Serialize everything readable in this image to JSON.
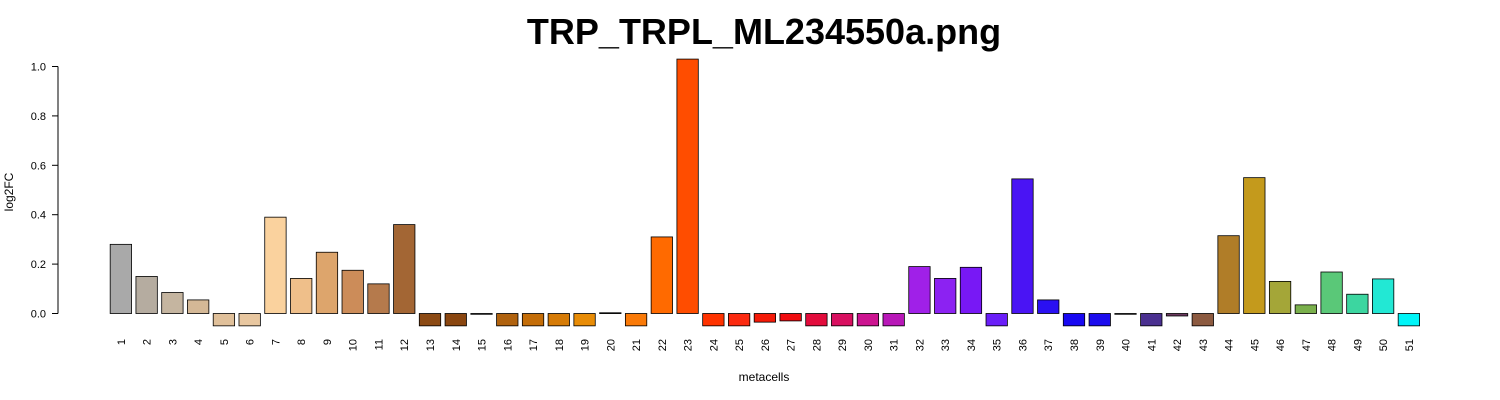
{
  "chart_data": {
    "type": "bar",
    "title": "TRP_TRPL_ML234550a.png",
    "xlabel": "metacells",
    "ylabel": "log2FC",
    "ylim": [
      -0.05,
      1.03
    ],
    "yticks": [
      "0.0",
      "0.2",
      "0.4",
      "0.6",
      "0.8",
      "1.0"
    ],
    "grid": false,
    "legend": "none",
    "categories": [
      "1",
      "2",
      "3",
      "4",
      "5",
      "6",
      "7",
      "8",
      "9",
      "10",
      "11",
      "12",
      "13",
      "14",
      "15",
      "16",
      "17",
      "18",
      "19",
      "20",
      "21",
      "22",
      "23",
      "24",
      "25",
      "26",
      "27",
      "28",
      "29",
      "30",
      "31",
      "32",
      "33",
      "34",
      "35",
      "36",
      "37",
      "38",
      "39",
      "40",
      "41",
      "42",
      "43",
      "44",
      "45",
      "46",
      "47",
      "48",
      "49",
      "50",
      "51"
    ],
    "values": [
      0.28,
      0.15,
      0.085,
      0.055,
      -0.05,
      -0.05,
      0.39,
      0.142,
      0.248,
      0.175,
      0.12,
      0.36,
      -0.05,
      -0.05,
      -0.003,
      -0.05,
      -0.05,
      -0.05,
      -0.05,
      0.003,
      -0.05,
      0.31,
      1.03,
      -0.05,
      -0.05,
      -0.035,
      -0.03,
      -0.05,
      -0.05,
      -0.05,
      -0.05,
      0.19,
      0.142,
      0.187,
      -0.05,
      0.545,
      0.055,
      -0.05,
      -0.05,
      -0.003,
      -0.05,
      -0.01,
      -0.05,
      0.315,
      0.55,
      0.13,
      0.035,
      0.168,
      0.078,
      0.14,
      -0.05
    ],
    "colors": [
      "#a9a9a9",
      "#b5aca0",
      "#c5b5a0",
      "#d4b896",
      "#e0c09a",
      "#e8c7a0",
      "#fad29e",
      "#efbf8a",
      "#dda56c",
      "#cc8c59",
      "#b57a4c",
      "#a36634",
      "#8c4a14",
      "#8a4610",
      "#9e5410",
      "#b0620e",
      "#c46d08",
      "#d67b06",
      "#e88c06",
      "#f09a06",
      "#fa7a08",
      "#ff6a00",
      "#ff4d00",
      "#ff3300",
      "#fc2a10",
      "#f41a08",
      "#f00c10",
      "#e20c3c",
      "#d81060",
      "#cc1490",
      "#b818b8",
      "#a020e8",
      "#8c22f2",
      "#7818f5",
      "#6a1ef8",
      "#4a14f4",
      "#2a10f2",
      "#1808f2",
      "#1c0cee",
      "#3020c8",
      "#4a3090",
      "#6c3a60",
      "#8c5a40",
      "#b07d28",
      "#c49a1c",
      "#a4a638",
      "#7ab04c",
      "#5ac878",
      "#3cd6a0",
      "#22e8d4",
      "#00f5f8"
    ]
  }
}
